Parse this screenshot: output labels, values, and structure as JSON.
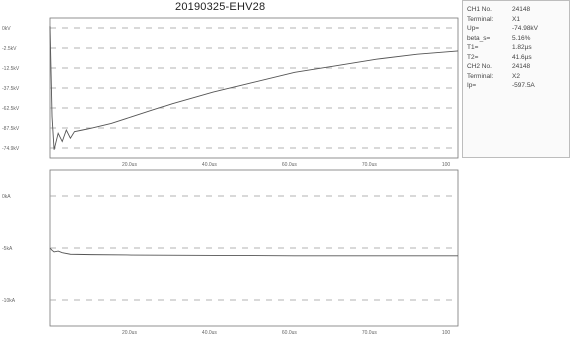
{
  "title": "20190325-EHV28",
  "chart_data": [
    {
      "type": "line",
      "title": "20190325-EHV28",
      "y_tick_labels": [
        "0kV",
        "-2.5kV",
        "-12.5kV",
        "-37.5kV",
        "-62.5kV",
        "-87.5kV",
        "-74.9kV"
      ],
      "x_tick_labels": [
        "20.0us",
        "40.0us",
        "60.0us",
        "70.0us",
        "100"
      ],
      "series": [
        {
          "values_x": [
            0,
            0.5,
            1,
            2,
            3,
            4,
            5,
            6,
            8,
            10,
            15,
            20,
            25,
            30,
            40,
            50,
            60,
            70,
            80,
            90,
            100
          ],
          "values_y": [
            0,
            -55,
            -75,
            -65,
            -70,
            -63,
            -68,
            -64,
            -63,
            -62,
            -59,
            -55,
            -51,
            -47,
            -40,
            -34,
            -28,
            -24,
            -20,
            -17,
            -15
          ]
        }
      ],
      "xlim": [
        0,
        100
      ],
      "ylim": [
        -80,
        5
      ],
      "grid": true
    },
    {
      "type": "line",
      "title": "",
      "y_tick_labels": [
        "0kA",
        "-5kA",
        "-10kA"
      ],
      "x_tick_labels": [
        "20.0us",
        "40.0us",
        "60.0us",
        "70.0us",
        "100"
      ],
      "series": [
        {
          "values_x": [
            0,
            0.5,
            1,
            2,
            3,
            5,
            10,
            20,
            40,
            60,
            80,
            100
          ],
          "values_y": [
            0,
            -0.3,
            -0.5,
            -0.4,
            -0.6,
            -0.8,
            -0.85,
            -0.9,
            -0.95,
            -1.0,
            -1.0,
            -1.0
          ]
        }
      ],
      "xlim": [
        0,
        100
      ],
      "ylim": [
        -10,
        10
      ],
      "grid": true
    }
  ],
  "panel": {
    "rows": [
      {
        "label": "CH1 No.",
        "value": "24148"
      },
      {
        "label": "Terminal:",
        "value": "X1"
      },
      {
        "label": "Up=",
        "value": "-74.98kV"
      },
      {
        "label": "beta_s=",
        "value": "5.16%"
      },
      {
        "label": "T1=",
        "value": "1.82µs"
      },
      {
        "label": "T2=",
        "value": "41.6µs"
      },
      {
        "label": "CH2 No.",
        "value": "24148"
      },
      {
        "label": "Terminal:",
        "value": "X2"
      },
      {
        "label": "Ip=",
        "value": "-597.5A"
      }
    ]
  },
  "colors": {
    "grid": "#9a9a9a",
    "axis": "#777777",
    "curve": "#555555",
    "background": "#ffffff"
  }
}
